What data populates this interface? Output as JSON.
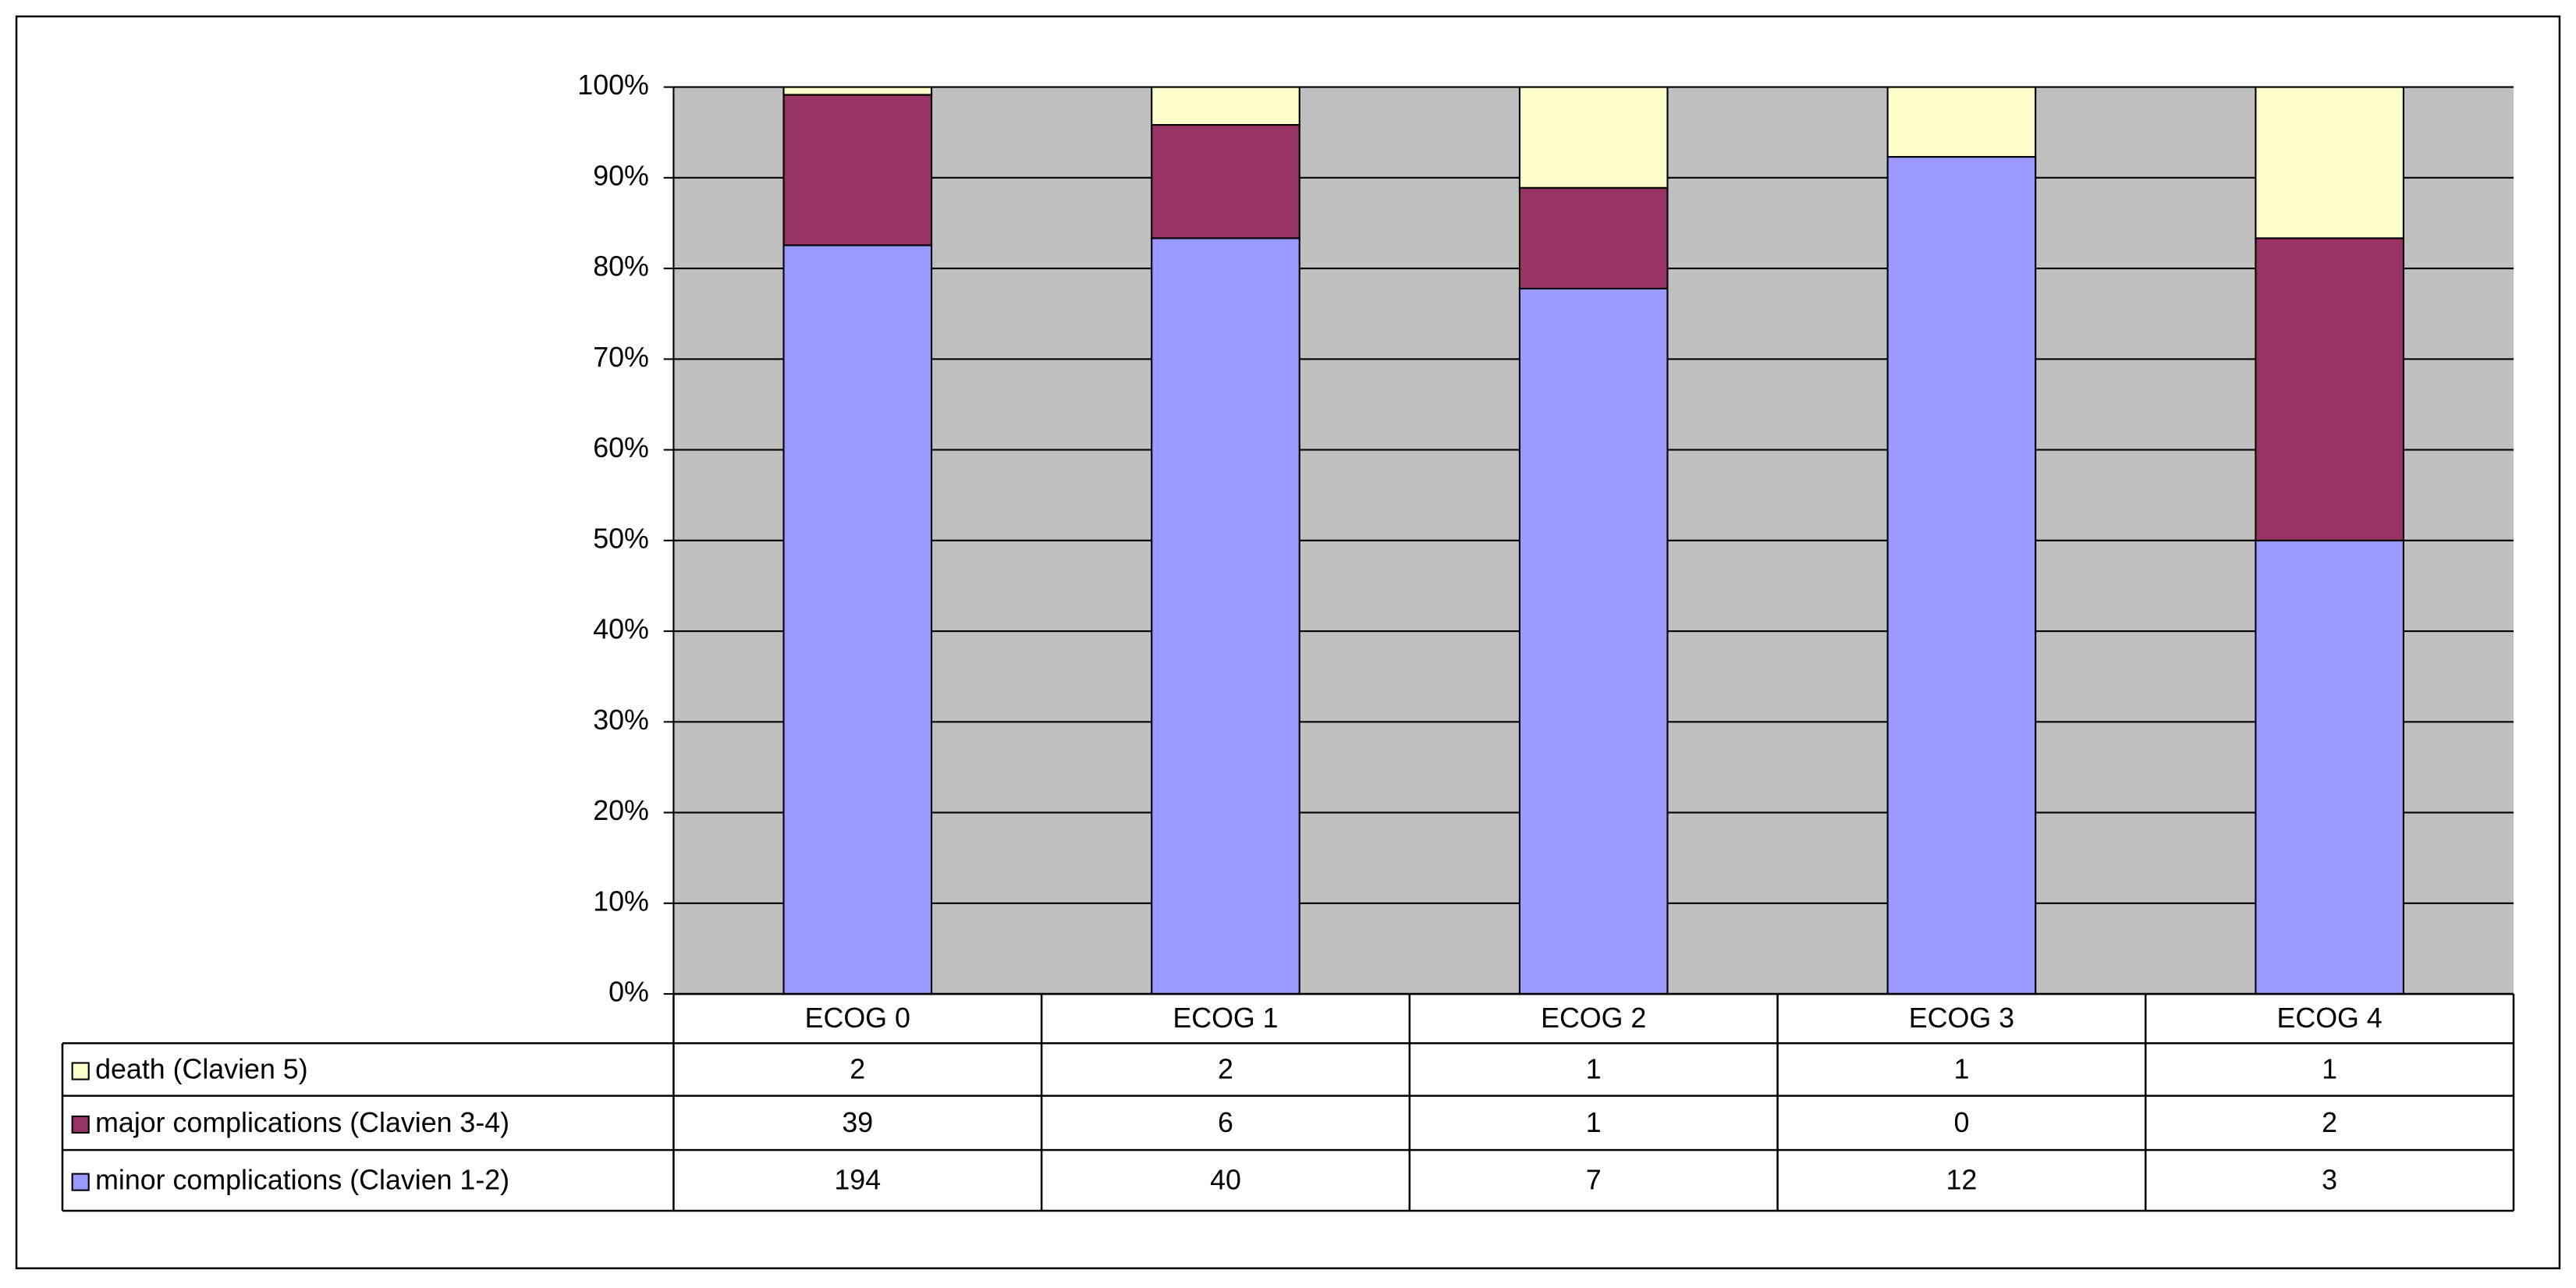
{
  "chart_data": {
    "type": "percent_stacked_bar",
    "categories": [
      "ECOG 0",
      "ECOG 1",
      "ECOG 2",
      "ECOG 3",
      "ECOG 4"
    ],
    "series": [
      {
        "name": "minor complications (Clavien 1-2)",
        "color": "#9999ff",
        "values": [
          194,
          40,
          7,
          12,
          3
        ]
      },
      {
        "name": "major complications (Clavien 3-4)",
        "color": "#993366",
        "values": [
          39,
          6,
          1,
          0,
          2
        ]
      },
      {
        "name": "death (Clavien 5)",
        "color": "#ffffcc",
        "values": [
          2,
          2,
          1,
          1,
          1
        ]
      }
    ],
    "ylim": [
      0,
      100
    ],
    "yticks": [
      {
        "value": 0,
        "label": "0%"
      },
      {
        "value": 10,
        "label": "10%"
      },
      {
        "value": 20,
        "label": "20%"
      },
      {
        "value": 30,
        "label": "30%"
      },
      {
        "value": 40,
        "label": "40%"
      },
      {
        "value": 50,
        "label": "50%"
      },
      {
        "value": 60,
        "label": "60%"
      },
      {
        "value": 70,
        "label": "70%"
      },
      {
        "value": 80,
        "label": "80%"
      },
      {
        "value": 90,
        "label": "90%"
      },
      {
        "value": 100,
        "label": "100%"
      }
    ],
    "grid": true,
    "plot_background": "#c0c0c0"
  }
}
